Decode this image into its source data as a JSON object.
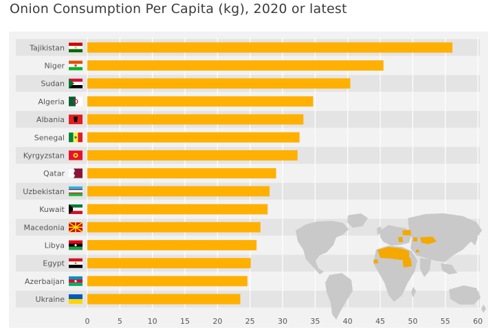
{
  "chart_data": {
    "type": "bar",
    "orientation": "horizontal",
    "title": "Onion Consumption Per Capita (kg), 2020 or latest",
    "categories": [
      "Tajikistan",
      "Niger",
      "Sudan",
      "Algeria",
      "Albania",
      "Senegal",
      "Kyrgyzstan",
      "Qatar",
      "Uzbekistan",
      "Kuwait",
      "Macedonia",
      "Libya",
      "Egypt",
      "Azerbaijan",
      "Ukraine"
    ],
    "values": [
      56.1,
      45.5,
      40.4,
      34.7,
      33.2,
      32.6,
      32.3,
      29.0,
      28.0,
      27.7,
      26.6,
      26.0,
      25.1,
      24.6,
      23.5
    ],
    "xlabel": "",
    "ylabel": "",
    "xlim": [
      0,
      60
    ],
    "xticks": [
      0,
      5,
      10,
      15,
      20,
      25,
      30,
      35,
      40,
      45,
      50,
      55,
      60
    ],
    "grid": true,
    "bar_color": "#ffb000",
    "background_color": "#f2f2f2",
    "map_highlight_color": "#f5a800",
    "map_base_color": "#c9c9c9"
  },
  "flags": [
    "tajikistan-flag",
    "niger-flag",
    "sudan-flag",
    "algeria-flag",
    "albania-flag",
    "senegal-flag",
    "kyrgyzstan-flag",
    "qatar-flag",
    "uzbekistan-flag",
    "kuwait-flag",
    "macedonia-flag",
    "libya-flag",
    "egypt-flag",
    "azerbaijan-flag",
    "ukraine-flag"
  ]
}
